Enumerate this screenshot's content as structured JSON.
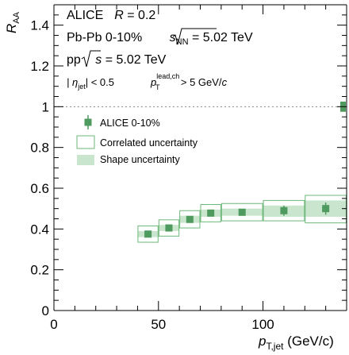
{
  "chart_data": {
    "type": "scatter",
    "xlim": [
      0,
      140
    ],
    "ylim": [
      0,
      1.5
    ],
    "x_ticks": [
      0,
      50,
      100
    ],
    "x_tick_labels": [
      "0",
      "50",
      "100"
    ],
    "y_ticks": [
      0,
      0.2,
      0.4,
      0.6,
      0.8,
      1,
      1.2,
      1.4
    ],
    "y_tick_labels": [
      "0",
      "0.2",
      "0.4",
      "0.6",
      "0.8",
      "1",
      "1.2",
      "1.4"
    ],
    "xlabel": {
      "main": "p",
      "sub": "T,jet",
      "unit": " (GeV/c)"
    },
    "ylabel": {
      "main": "R",
      "sub": "AA"
    },
    "grid": false,
    "reference_line": {
      "y": 1,
      "style": "dotted"
    },
    "annotations": {
      "line1_experiment": "ALICE",
      "line1_param": "R",
      "line1_value": " = 0.2",
      "line2_system": "Pb-Pb  0-10%",
      "line2_sqrt": "s",
      "line2_sub": "NN",
      "line2_value": " = 5.02 TeV",
      "line3_system": "pp",
      "line3_sqrt": "s",
      "line3_value": " = 5.02 TeV",
      "line4_eta": "| η",
      "line4_eta_sub": "jet",
      "line4_eta_cut": "| < 0.5",
      "line4_pt": "p",
      "line4_pt_sup": "lead,ch",
      "line4_pt_sub": "T",
      "line4_pt_cut": " > 5 GeV/",
      "line4_pt_unit": "c"
    },
    "legend": {
      "placement": "center-left",
      "entries": [
        "ALICE 0-10%",
        "Correlated uncertainty",
        "Shape uncertainty"
      ]
    },
    "colors": {
      "marker": "#4e9a5f",
      "correlated_box": "#6cb779",
      "shape_band": "#c9e5cd",
      "reference_line": "#888888"
    },
    "series": [
      {
        "name": "ALICE 0-10%",
        "points": [
          {
            "x": 45,
            "x_lo": 40,
            "x_hi": 50,
            "y": 0.375,
            "stat_err": 0.012,
            "corr_lo": 0.335,
            "corr_hi": 0.415,
            "shape_lo": 0.36,
            "shape_hi": 0.39
          },
          {
            "x": 55,
            "x_lo": 50,
            "x_hi": 60,
            "y": 0.405,
            "stat_err": 0.012,
            "corr_lo": 0.365,
            "corr_hi": 0.445,
            "shape_lo": 0.39,
            "shape_hi": 0.42
          },
          {
            "x": 65,
            "x_lo": 60,
            "x_hi": 70,
            "y": 0.447,
            "stat_err": 0.013,
            "corr_lo": 0.405,
            "corr_hi": 0.49,
            "shape_lo": 0.43,
            "shape_hi": 0.465
          },
          {
            "x": 75,
            "x_lo": 70,
            "x_hi": 80,
            "y": 0.478,
            "stat_err": 0.013,
            "corr_lo": 0.435,
            "corr_hi": 0.52,
            "shape_lo": 0.46,
            "shape_hi": 0.495
          },
          {
            "x": 90,
            "x_lo": 80,
            "x_hi": 100,
            "y": 0.482,
            "stat_err": 0.014,
            "corr_lo": 0.44,
            "corr_hi": 0.525,
            "shape_lo": 0.465,
            "shape_hi": 0.5
          },
          {
            "x": 110,
            "x_lo": 100,
            "x_hi": 120,
            "y": 0.49,
            "stat_err": 0.025,
            "corr_lo": 0.44,
            "corr_hi": 0.54,
            "shape_lo": 0.46,
            "shape_hi": 0.515
          },
          {
            "x": 130,
            "x_lo": 120,
            "x_hi": 140,
            "y": 0.5,
            "stat_err": 0.03,
            "corr_lo": 0.43,
            "corr_hi": 0.565,
            "shape_lo": 0.46,
            "shape_hi": 0.54
          }
        ]
      }
    ],
    "normalization_uncertainty": {
      "x": 140,
      "y_lo": 0.975,
      "y_hi": 1.025
    }
  }
}
